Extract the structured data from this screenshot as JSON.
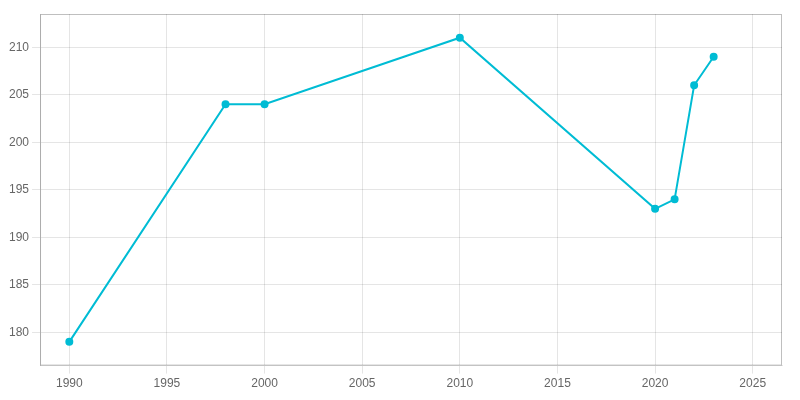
{
  "chart_data": {
    "type": "line",
    "x": [
      1990,
      1998,
      2000,
      2010,
      2020,
      2021,
      2022,
      2023
    ],
    "values": [
      179,
      204,
      204,
      211,
      193,
      194,
      206,
      209
    ],
    "color": "#00bcd4",
    "marker": "circle",
    "xlim": [
      1988.5,
      2026.5
    ],
    "xticks": [
      1990,
      1995,
      2000,
      2005,
      2010,
      2015,
      2020,
      2025
    ],
    "ylim": [
      176.5,
      213.5
    ],
    "yticks": [
      180,
      185,
      190,
      195,
      200,
      205,
      210
    ],
    "grid": true
  }
}
